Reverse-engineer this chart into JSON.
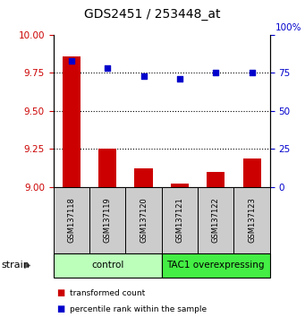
{
  "title": "GDS2451 / 253448_at",
  "samples": [
    "GSM137118",
    "GSM137119",
    "GSM137120",
    "GSM137121",
    "GSM137122",
    "GSM137123"
  ],
  "red_values": [
    9.86,
    9.25,
    9.12,
    9.02,
    9.1,
    9.19
  ],
  "blue_values": [
    83,
    78,
    73,
    71,
    75,
    75
  ],
  "groups": [
    {
      "label": "control",
      "indices": [
        0,
        1,
        2
      ],
      "color": "#bbffbb"
    },
    {
      "label": "TAC1 overexpressing",
      "indices": [
        3,
        4,
        5
      ],
      "color": "#44ee44"
    }
  ],
  "ylim_left": [
    9.0,
    10.0
  ],
  "ylim_right": [
    0,
    100
  ],
  "yticks_left": [
    9.0,
    9.25,
    9.5,
    9.75,
    10.0
  ],
  "yticks_right": [
    0,
    25,
    50,
    75,
    100
  ],
  "bar_color": "#cc0000",
  "dot_color": "#0000cc",
  "bg_color_samples": "#cccccc",
  "bg_color_plot": "#ffffff",
  "legend_red": "transformed count",
  "legend_blue": "percentile rank within the sample",
  "strain_label": "strain",
  "dotted_lines": [
    9.25,
    9.5,
    9.75
  ],
  "bar_width": 0.5,
  "right_axis_label": "100%"
}
